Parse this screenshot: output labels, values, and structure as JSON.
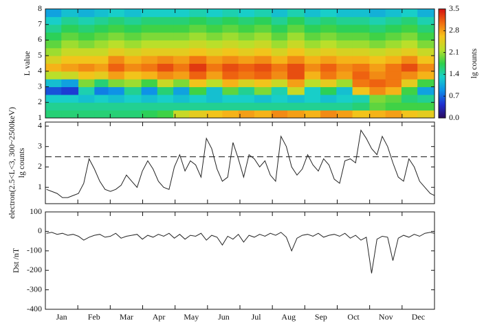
{
  "chart_data": [
    {
      "type": "heatmap",
      "ylabel": "L value",
      "colorbar_label": "lg counts",
      "x_bins": [
        0,
        15,
        31,
        46,
        59,
        74,
        90,
        105,
        120,
        135,
        151,
        166,
        181,
        196,
        212,
        227,
        243,
        258,
        273,
        288,
        304,
        319,
        334,
        349,
        365
      ],
      "y_bins": [
        1,
        1.5,
        2,
        2.5,
        3,
        3.5,
        4,
        4.5,
        5,
        5.5,
        6,
        6.5,
        7,
        7.5,
        8
      ],
      "z": [
        [
          1.6,
          1.6,
          1.6,
          1.6,
          1.6,
          1.6,
          1.7,
          1.8,
          2.3,
          2.5,
          2.6,
          2.7,
          2.8,
          2.7,
          2.9,
          2.8,
          2.7,
          2.9,
          2.8,
          2.6,
          2.7,
          2.8,
          2.6,
          2.5
        ],
        [
          1.5,
          1.5,
          1.5,
          1.5,
          1.5,
          1.5,
          1.5,
          1.5,
          1.5,
          1.5,
          1.5,
          1.5,
          1.5,
          1.5,
          1.5,
          1.5,
          1.5,
          1.5,
          1.5,
          1.6,
          1.9,
          1.8,
          1.8,
          1.8
        ],
        [
          1.3,
          1.3,
          1.2,
          1.3,
          1.2,
          1.3,
          1.2,
          1.3,
          1.2,
          1.3,
          1.2,
          1.3,
          1.3,
          1.2,
          1.3,
          1.2,
          1.3,
          1.2,
          1.3,
          1.4,
          2.0,
          1.9,
          1.6,
          1.5
        ],
        [
          0.6,
          0.5,
          1.4,
          0.8,
          0.9,
          1.5,
          0.9,
          1.6,
          1.0,
          1.8,
          1.2,
          1.9,
          1.5,
          2.0,
          1.4,
          2.3,
          1.3,
          1.7,
          1.2,
          2.6,
          2.9,
          2.7,
          1.8,
          1.0
        ],
        [
          1.2,
          1.0,
          2.0,
          1.6,
          2.0,
          2.1,
          1.8,
          2.3,
          2.0,
          2.6,
          2.2,
          2.7,
          2.4,
          2.6,
          2.3,
          2.8,
          2.2,
          2.5,
          2.1,
          3.0,
          3.1,
          3.0,
          2.5,
          1.8
        ],
        [
          2.2,
          2.3,
          2.6,
          2.5,
          2.8,
          2.6,
          2.7,
          2.9,
          2.8,
          3.1,
          2.8,
          3.1,
          3.0,
          3.1,
          2.9,
          3.2,
          2.7,
          3.0,
          2.8,
          3.1,
          2.9,
          3.0,
          2.9,
          2.7
        ],
        [
          2.7,
          2.8,
          2.9,
          2.8,
          3.1,
          2.9,
          3.0,
          3.2,
          3.0,
          3.3,
          3.0,
          3.2,
          3.1,
          3.2,
          3.0,
          3.2,
          2.9,
          3.1,
          2.9,
          3.0,
          2.8,
          3.0,
          3.2,
          2.9
        ],
        [
          2.4,
          2.6,
          2.6,
          2.6,
          2.9,
          2.7,
          2.8,
          2.9,
          2.8,
          3.0,
          2.8,
          2.9,
          2.8,
          2.9,
          2.7,
          2.9,
          2.7,
          2.8,
          2.7,
          2.7,
          2.6,
          2.7,
          2.9,
          2.6
        ],
        [
          2.1,
          2.3,
          2.3,
          2.3,
          2.5,
          2.4,
          2.5,
          2.5,
          2.5,
          2.6,
          2.5,
          2.6,
          2.5,
          2.6,
          2.4,
          2.6,
          2.4,
          2.5,
          2.4,
          2.4,
          2.3,
          2.4,
          2.5,
          2.3
        ],
        [
          1.9,
          2.1,
          2.0,
          2.1,
          2.2,
          2.1,
          2.2,
          2.2,
          2.2,
          2.3,
          2.2,
          2.3,
          2.2,
          2.3,
          2.1,
          2.3,
          2.1,
          2.2,
          2.1,
          2.1,
          2.0,
          2.1,
          2.2,
          2.0
        ],
        [
          1.7,
          1.9,
          1.8,
          1.9,
          2.0,
          1.9,
          2.0,
          2.0,
          2.0,
          2.1,
          2.0,
          2.1,
          2.0,
          2.1,
          1.9,
          2.1,
          1.9,
          2.0,
          1.9,
          1.9,
          1.8,
          1.9,
          2.0,
          1.8
        ],
        [
          1.5,
          1.7,
          1.6,
          1.7,
          1.8,
          1.7,
          1.8,
          1.8,
          1.8,
          1.9,
          1.8,
          1.9,
          1.8,
          1.9,
          1.7,
          1.9,
          1.7,
          1.8,
          1.7,
          1.7,
          1.6,
          1.7,
          1.8,
          1.6
        ],
        [
          1.3,
          1.5,
          1.4,
          1.5,
          1.6,
          1.5,
          1.6,
          1.6,
          1.6,
          1.7,
          1.6,
          1.7,
          1.6,
          1.7,
          1.5,
          1.7,
          1.5,
          1.6,
          1.5,
          1.5,
          1.4,
          1.5,
          1.6,
          1.4
        ],
        [
          1.0,
          1.2,
          1.1,
          1.2,
          1.3,
          1.2,
          1.3,
          1.3,
          1.3,
          1.4,
          1.3,
          1.4,
          1.3,
          1.4,
          1.2,
          1.4,
          1.2,
          1.3,
          1.2,
          1.2,
          1.1,
          1.2,
          1.3,
          1.1
        ]
      ],
      "xlim": [
        0,
        365
      ],
      "ylim": [
        1,
        8
      ],
      "yticks": [
        1,
        2,
        3,
        4,
        5,
        6,
        7,
        8
      ],
      "zlim": [
        0,
        3.5
      ],
      "zticks": [
        {
          "value": 0,
          "label": "0.0"
        },
        0.7,
        1.4,
        2.1,
        2.8,
        3.5
      ],
      "colormap": [
        "#2a0a5e",
        "#1f2fd0",
        "#0d8fe8",
        "#18d0c8",
        "#2fd04a",
        "#b8e02a",
        "#f6c21a",
        "#f06a10",
        "#d41010"
      ]
    },
    {
      "type": "line",
      "ylabel": [
        "lg counts",
        "electron(2.5<L<3, 300~2500keV)"
      ],
      "x": [
        1,
        6,
        11,
        16,
        21,
        26,
        31,
        36,
        41,
        46,
        51,
        56,
        61,
        66,
        71,
        76,
        81,
        86,
        91,
        96,
        101,
        106,
        111,
        116,
        121,
        126,
        131,
        136,
        141,
        146,
        151,
        156,
        161,
        166,
        171,
        176,
        181,
        186,
        191,
        196,
        201,
        206,
        211,
        216,
        221,
        226,
        231,
        236,
        241,
        246,
        251,
        256,
        261,
        266,
        271,
        276,
        281,
        286,
        291,
        296,
        301,
        306,
        311,
        316,
        321,
        326,
        331,
        336,
        341,
        346,
        351,
        356,
        361,
        365
      ],
      "series": [
        {
          "color": "#222222",
          "values": [
            0.9,
            0.8,
            0.7,
            0.5,
            0.5,
            0.6,
            0.7,
            1.2,
            2.4,
            1.9,
            1.3,
            0.9,
            0.8,
            0.9,
            1.1,
            1.6,
            1.3,
            1.0,
            1.8,
            2.3,
            1.9,
            1.3,
            1.0,
            0.9,
            2.0,
            2.6,
            1.8,
            2.3,
            2.1,
            1.5,
            3.4,
            2.9,
            1.9,
            1.3,
            1.5,
            3.2,
            2.4,
            1.5,
            2.6,
            2.4,
            2.0,
            2.3,
            1.6,
            1.3,
            3.5,
            3.0,
            2.0,
            1.6,
            1.9,
            2.6,
            2.1,
            1.8,
            2.4,
            2.1,
            1.4,
            1.2,
            2.3,
            2.4,
            2.2,
            3.8,
            3.4,
            2.9,
            2.6,
            3.5,
            3.0,
            2.2,
            1.5,
            1.3,
            2.4,
            2.0,
            1.3,
            1.0,
            0.7,
            0.6
          ]
        }
      ],
      "hline": 2.5,
      "xlim": [
        0,
        365
      ],
      "ylim": [
        0.2,
        4.2
      ],
      "yticks": [
        1,
        2,
        3,
        4
      ]
    },
    {
      "type": "line",
      "ylabel": "Dst /nT",
      "x": [
        1,
        6,
        11,
        16,
        21,
        26,
        31,
        36,
        41,
        46,
        51,
        56,
        61,
        66,
        71,
        76,
        81,
        86,
        91,
        96,
        101,
        106,
        111,
        116,
        121,
        126,
        131,
        136,
        141,
        146,
        151,
        156,
        161,
        166,
        171,
        176,
        181,
        186,
        191,
        196,
        201,
        206,
        211,
        216,
        221,
        226,
        231,
        236,
        241,
        246,
        251,
        256,
        261,
        266,
        271,
        276,
        281,
        286,
        291,
        296,
        301,
        306,
        311,
        316,
        321,
        326,
        331,
        336,
        341,
        346,
        351,
        356,
        361,
        365
      ],
      "series": [
        {
          "color": "#222222",
          "values": [
            -10,
            -5,
            -15,
            -10,
            -20,
            -15,
            -25,
            -45,
            -30,
            -20,
            -15,
            -30,
            -25,
            -10,
            -35,
            -25,
            -20,
            -15,
            -40,
            -20,
            -30,
            -15,
            -25,
            -10,
            -35,
            -15,
            -40,
            -20,
            -25,
            -10,
            -45,
            -20,
            -30,
            -70,
            -25,
            -40,
            -15,
            -55,
            -20,
            -30,
            -15,
            -25,
            -10,
            -20,
            -5,
            -30,
            -100,
            -35,
            -20,
            -15,
            -25,
            -10,
            -30,
            -20,
            -15,
            -25,
            -10,
            -35,
            -20,
            -45,
            -30,
            -215,
            -40,
            -25,
            -30,
            -150,
            -35,
            -20,
            -30,
            -15,
            -25,
            -10,
            -5,
            -10
          ]
        }
      ],
      "categories": [
        "Jan",
        "Feb",
        "Mar",
        "Apr",
        "May",
        "Jun",
        "Jul",
        "Aug",
        "Sep",
        "Oct",
        "Nov",
        "Dec"
      ],
      "xlim": [
        0,
        365
      ],
      "ylim": [
        -400,
        100
      ],
      "yticks": [
        -400,
        -300,
        -200,
        -100,
        0,
        100
      ]
    }
  ]
}
